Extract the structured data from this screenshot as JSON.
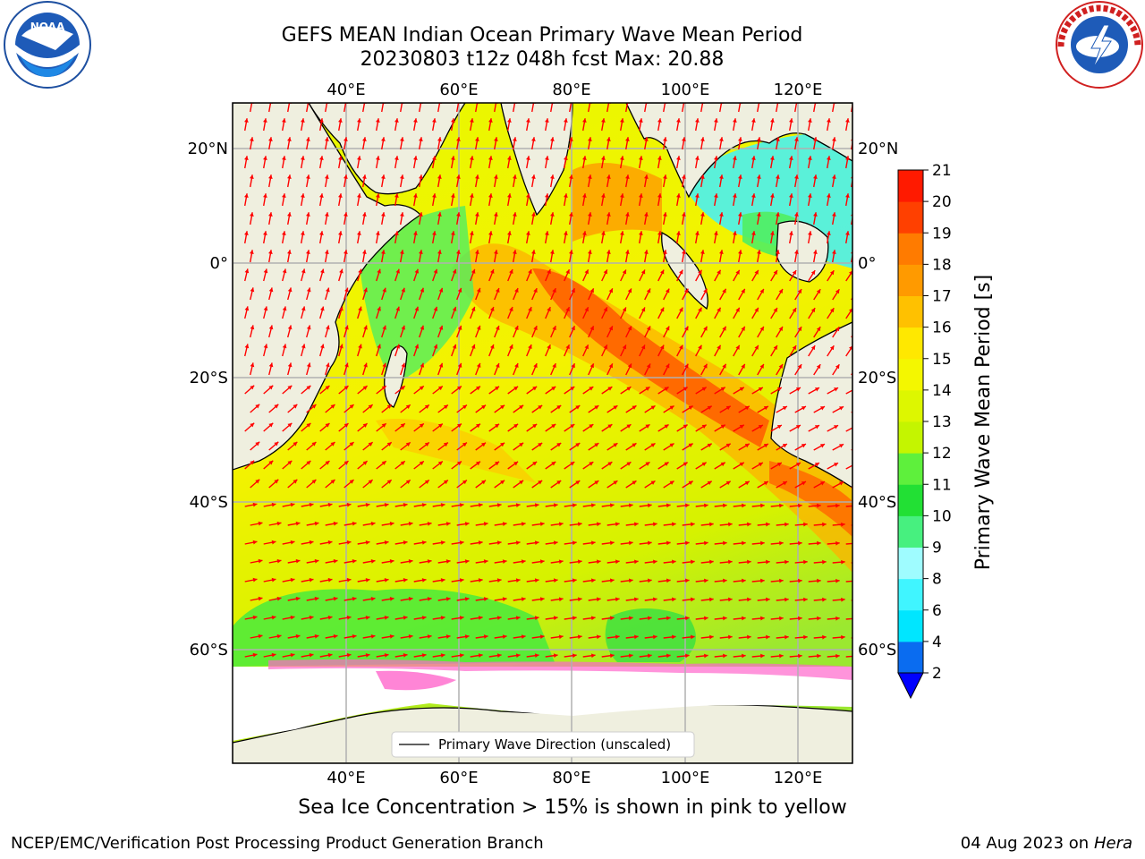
{
  "title": {
    "line1": "GEFS MEAN Indian Ocean Primary Wave Mean Period",
    "line2": "20230803 t12z 048h fcst   Max: 20.88"
  },
  "logos": {
    "left": {
      "icon": "noaa-logo",
      "text": "NOAA"
    },
    "right": {
      "icon": "nws-logo",
      "text": "NATIONAL WEATHER SERVICE"
    }
  },
  "map": {
    "lon_labels": [
      "40°E",
      "60°E",
      "80°E",
      "100°E",
      "120°E"
    ],
    "lat_labels": [
      "20°N",
      "0°",
      "20°S",
      "40°S",
      "60°S"
    ],
    "legend_label": "Primary Wave Direction (unscaled)",
    "colors": {
      "land": "#efefdf",
      "arrow": "#ff0000",
      "ice": "#ff66cc"
    }
  },
  "colorbar": {
    "label": "Primary Wave Mean Period [s]",
    "ticks": [
      "2",
      "4",
      "6",
      "8",
      "9",
      "10",
      "11",
      "12",
      "13",
      "14",
      "15",
      "16",
      "17",
      "18",
      "19",
      "20",
      "21"
    ],
    "colors": [
      "#0a6cf0",
      "#00e6ff",
      "#40f5ff",
      "#9ffcff",
      "#47f07f",
      "#22e034",
      "#5ef03c",
      "#c4f500",
      "#ddf700",
      "#f4f700",
      "#ffe800",
      "#ffc100",
      "#ff9a00",
      "#ff7b00",
      "#ff4000",
      "#ff1a00"
    ],
    "under_color": "#0000ff"
  },
  "caption": "Sea Ice Concentration > 15% is shown in pink to yellow",
  "footer": {
    "left": "NCEP/EMC/Verification Post Processing Product Generation Branch",
    "date": "04 Aug 2023 on",
    "machine": "Hera"
  }
}
